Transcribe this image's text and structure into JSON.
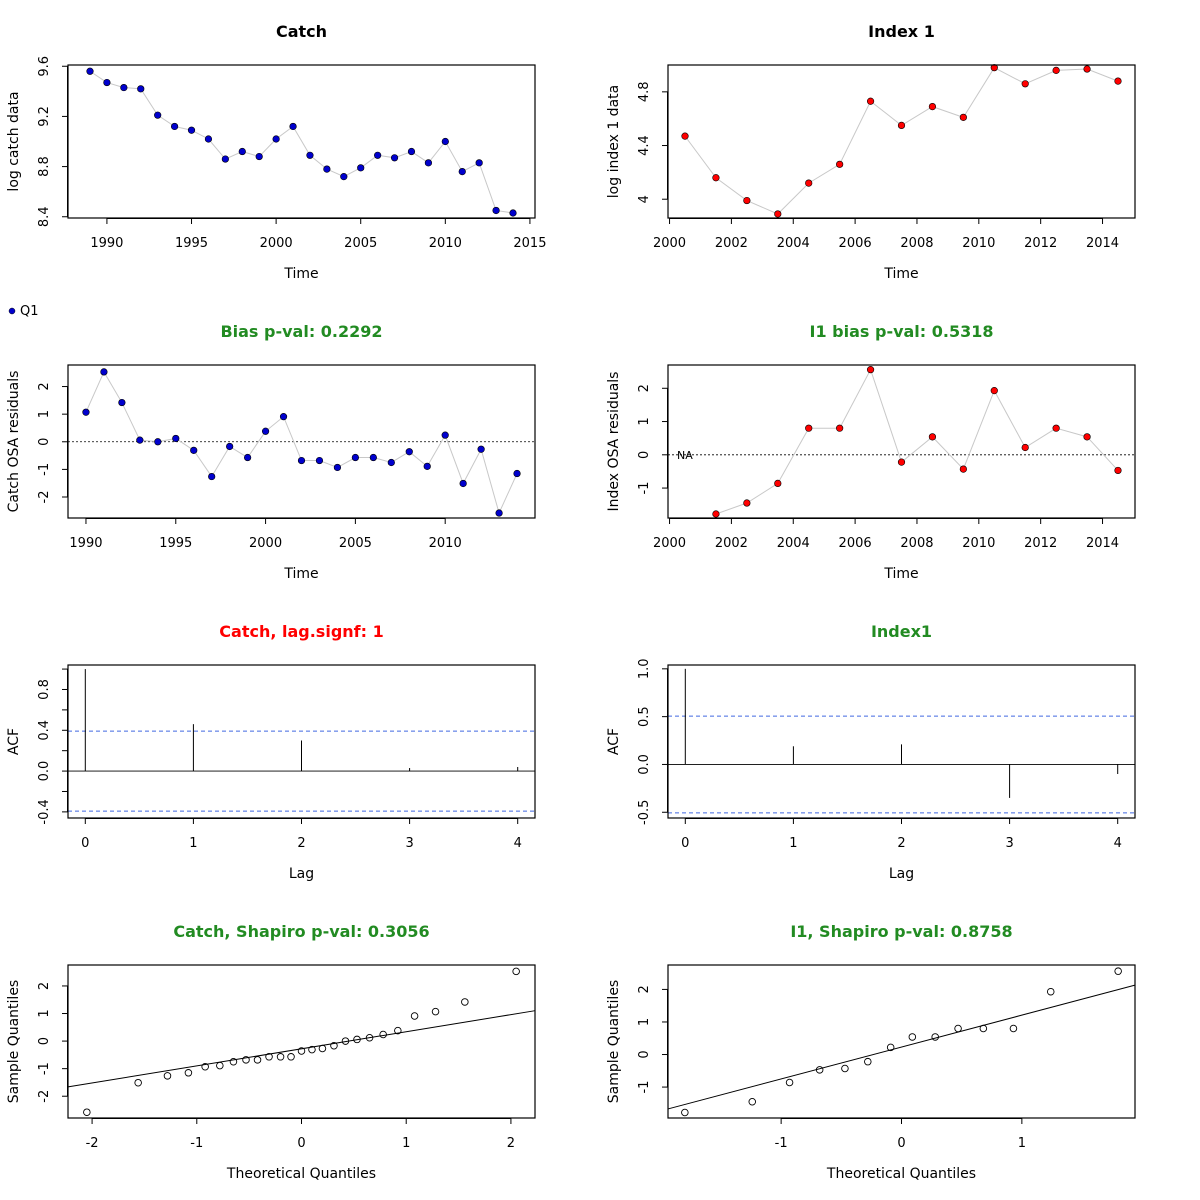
{
  "colors": {
    "green_title": "#228b22",
    "red_title": "#ff0000",
    "catch_point": "#0000cd",
    "index_point": "#ff0000",
    "line": "#c8c8c8",
    "ci": "#4169e1"
  },
  "legend": {
    "label": "Q1"
  },
  "chart_data": [
    {
      "id": "catch",
      "type": "scatter",
      "title": "Catch",
      "title_color": "black",
      "xlabel": "Time",
      "ylabel": "log catch data",
      "xlim": [
        1987.7,
        2015.3
      ],
      "ylim": [
        8.39,
        9.61
      ],
      "xticks": [
        1990,
        1995,
        2000,
        2005,
        2010,
        2015
      ],
      "yticks": [
        8.4,
        8.8,
        9.2,
        9.6
      ],
      "connect": true,
      "point_style": "filled-blue",
      "series": [
        {
          "x": [
            1989,
            1990,
            1991,
            1992,
            1993,
            1994,
            1995,
            1996,
            1997,
            1998,
            1999,
            2000,
            2001,
            2002,
            2003,
            2004,
            2005,
            2006,
            2007,
            2008,
            2009,
            2010,
            2011,
            2012,
            2013,
            2014
          ],
          "y": [
            9.56,
            9.47,
            9.43,
            9.42,
            9.21,
            9.12,
            9.09,
            9.02,
            8.86,
            8.92,
            8.88,
            9.02,
            9.12,
            8.89,
            8.78,
            8.72,
            8.79,
            8.89,
            8.87,
            8.92,
            8.83,
            9.0,
            8.76,
            8.83,
            8.45,
            8.43
          ]
        }
      ]
    },
    {
      "id": "index1",
      "type": "scatter",
      "title": "Index 1",
      "title_color": "black",
      "xlabel": "Time",
      "ylabel": "log index 1 data",
      "xlim": [
        1999.95,
        2015.05
      ],
      "ylim": [
        3.86,
        5.0
      ],
      "xticks": [
        2000,
        2002,
        2004,
        2006,
        2008,
        2010,
        2012,
        2014
      ],
      "yticks": [
        4.0,
        4.4,
        4.8
      ],
      "connect": true,
      "point_style": "filled-red",
      "series": [
        {
          "x": [
            2000.5,
            2001.5,
            2002.5,
            2003.5,
            2004.5,
            2005.5,
            2006.5,
            2007.5,
            2008.5,
            2009.5,
            2010.5,
            2011.5,
            2012.5,
            2013.5,
            2014.5
          ],
          "y": [
            4.47,
            4.16,
            3.99,
            3.89,
            4.12,
            4.26,
            4.73,
            4.55,
            4.69,
            4.61,
            4.98,
            4.86,
            4.96,
            4.97,
            4.88
          ]
        }
      ]
    },
    {
      "id": "catch_resid",
      "type": "scatter",
      "title": "Bias p-val: 0.2292",
      "title_color": "green",
      "xlabel": "Time",
      "ylabel": "Catch OSA residuals",
      "xlim": [
        1989.0,
        2015.0
      ],
      "ylim": [
        -2.76,
        2.78
      ],
      "xticks": [
        1990,
        1995,
        2000,
        2005,
        2010
      ],
      "yticks": [
        -2,
        -1,
        0,
        1,
        2
      ],
      "connect": true,
      "zero_line": true,
      "point_style": "filled-blue",
      "series": [
        {
          "x": [
            1990,
            1991,
            1992,
            1993,
            1994,
            1995,
            1996,
            1997,
            1998,
            1999,
            2000,
            2001,
            2002,
            2003,
            2004,
            2005,
            2006,
            2007,
            2008,
            2009,
            2010,
            2011,
            2012,
            2013,
            2014
          ],
          "y": [
            1.07,
            2.53,
            1.42,
            0.06,
            0.0,
            0.12,
            -0.31,
            -1.26,
            -0.17,
            -0.57,
            0.38,
            0.91,
            -0.68,
            -0.68,
            -0.93,
            -0.57,
            -0.57,
            -0.75,
            -0.36,
            -0.89,
            0.24,
            -1.51,
            -0.27,
            -2.58,
            -1.15
          ]
        }
      ]
    },
    {
      "id": "index_resid",
      "type": "scatter",
      "title": "I1 bias p-val: 0.5318",
      "title_color": "green",
      "xlabel": "Time",
      "ylabel": "Index OSA residuals",
      "xlim": [
        1999.95,
        2015.05
      ],
      "ylim": [
        -1.9,
        2.7
      ],
      "xticks": [
        2000,
        2002,
        2004,
        2006,
        2008,
        2010,
        2012,
        2014
      ],
      "yticks": [
        -1,
        0,
        1,
        2
      ],
      "connect": true,
      "zero_line": true,
      "na_label": "NA",
      "na_x": 2000.5,
      "point_style": "filled-red",
      "series": [
        {
          "x": [
            2001.5,
            2002.5,
            2003.5,
            2004.5,
            2005.5,
            2006.5,
            2007.5,
            2008.5,
            2009.5,
            2010.5,
            2011.5,
            2012.5,
            2013.5,
            2014.5
          ],
          "y": [
            -1.78,
            -1.45,
            -0.86,
            0.8,
            0.8,
            2.56,
            -0.22,
            0.54,
            -0.43,
            1.93,
            0.22,
            0.8,
            0.54,
            -0.47
          ]
        }
      ]
    },
    {
      "id": "catch_acf",
      "type": "bar",
      "title": "Catch, lag.signf: 1",
      "title_color": "red",
      "xlabel": "Lag",
      "ylabel": "ACF",
      "xlim": [
        -0.16,
        4.16
      ],
      "ylim": [
        -0.46,
        1.04
      ],
      "xticks": [
        0,
        1,
        2,
        3,
        4
      ],
      "yticks": [
        -0.4,
        0.0,
        0.4,
        0.8
      ],
      "ytick_labels": [
        "-0.4",
        "0.0",
        "0.4",
        "0.8"
      ],
      "minor_yticks": [
        -0.2,
        0.2,
        0.6,
        1.0
      ],
      "zero_line": true,
      "ci": 0.392,
      "lags": [
        0,
        1,
        2,
        3,
        4
      ],
      "values": [
        1.0,
        0.46,
        0.3,
        0.03,
        0.04
      ]
    },
    {
      "id": "index_acf",
      "type": "bar",
      "title": "Index1",
      "title_color": "green",
      "xlabel": "Lag",
      "ylabel": "ACF",
      "xlim": [
        -0.16,
        4.16
      ],
      "ylim": [
        -0.56,
        1.04
      ],
      "xticks": [
        0,
        1,
        2,
        3,
        4
      ],
      "yticks": [
        -0.5,
        0.0,
        0.5,
        1.0
      ],
      "ytick_labels": [
        "-0.5",
        "0.0",
        "0.5",
        "1.0"
      ],
      "zero_line": true,
      "ci": 0.506,
      "lags": [
        0,
        1,
        2,
        3,
        4
      ],
      "values": [
        1.0,
        0.19,
        0.21,
        -0.35,
        -0.1
      ]
    },
    {
      "id": "catch_qq",
      "type": "scatter",
      "title": "Catch, Shapiro p-val: 0.3056",
      "title_color": "green",
      "xlabel": "Theoretical Quantiles",
      "ylabel": "Sample Quantiles",
      "xlim": [
        -2.23,
        2.23
      ],
      "ylim": [
        -2.79,
        2.76
      ],
      "xticks": [
        -2,
        -1,
        0,
        1,
        2
      ],
      "yticks": [
        -2,
        -1,
        0,
        1,
        2
      ],
      "point_style": "open",
      "qq_line": {
        "intercept": -0.28,
        "slope": 0.62
      },
      "series": [
        {
          "x": [
            -2.05,
            -1.56,
            -1.28,
            -1.08,
            -0.92,
            -0.78,
            -0.65,
            -0.53,
            -0.42,
            -0.31,
            -0.2,
            -0.1,
            0.0,
            0.1,
            0.2,
            0.31,
            0.42,
            0.53,
            0.65,
            0.78,
            0.92,
            1.08,
            1.28,
            1.56,
            2.05
          ],
          "y": [
            -2.58,
            -1.51,
            -1.26,
            -1.15,
            -0.93,
            -0.89,
            -0.75,
            -0.68,
            -0.68,
            -0.57,
            -0.57,
            -0.57,
            -0.36,
            -0.31,
            -0.27,
            -0.17,
            0.0,
            0.06,
            0.12,
            0.24,
            0.38,
            0.91,
            1.07,
            1.42,
            2.53
          ]
        }
      ]
    },
    {
      "id": "index_qq",
      "type": "scatter",
      "title": "I1, Shapiro p-val: 0.8758",
      "title_color": "green",
      "xlabel": "Theoretical Quantiles",
      "ylabel": "Sample Quantiles",
      "xlim": [
        -1.94,
        1.94
      ],
      "ylim": [
        -1.95,
        2.75
      ],
      "xticks": [
        -1,
        0,
        1
      ],
      "yticks": [
        -1,
        0,
        1,
        2
      ],
      "point_style": "open",
      "qq_line": {
        "intercept": 0.23,
        "slope": 0.98
      },
      "series": [
        {
          "x": [
            -1.8,
            -1.24,
            -0.93,
            -0.68,
            -0.47,
            -0.28,
            -0.09,
            0.09,
            0.28,
            0.47,
            0.68,
            0.93,
            1.24,
            1.8
          ],
          "y": [
            -1.78,
            -1.45,
            -0.86,
            -0.47,
            -0.43,
            -0.22,
            0.22,
            0.54,
            0.54,
            0.8,
            0.8,
            0.8,
            1.93,
            2.56
          ]
        }
      ]
    }
  ]
}
